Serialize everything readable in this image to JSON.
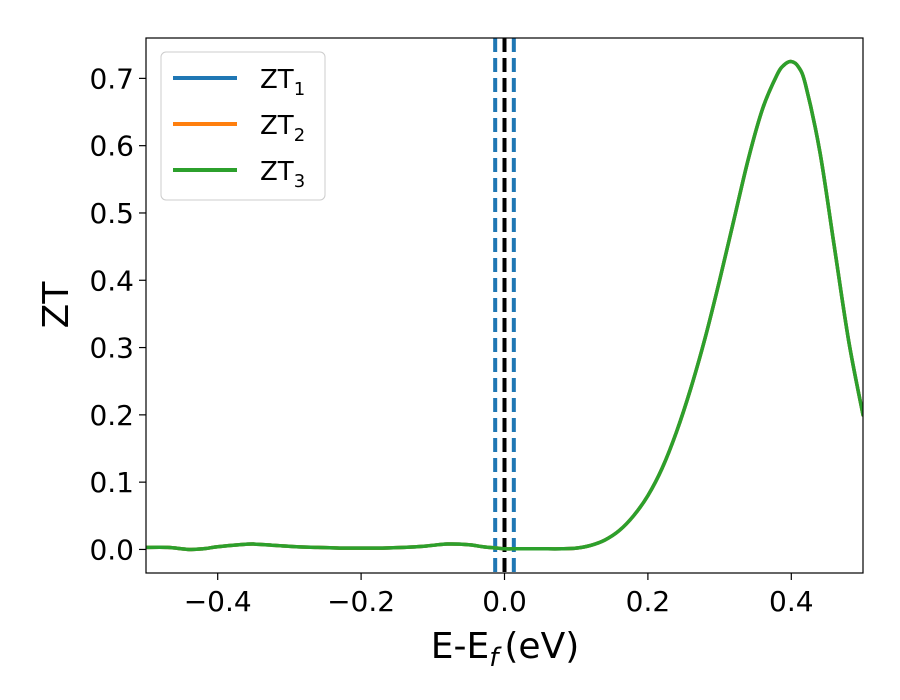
{
  "chart_data": {
    "type": "line",
    "xlabel": "E-E",
    "xlabel_sub": "f",
    "xlabel_unit": "(eV)",
    "ylabel": "ZT",
    "xlim": [
      -0.5,
      0.5
    ],
    "ylim": [
      -0.035,
      0.76
    ],
    "x_ticks": [
      -0.4,
      -0.2,
      0.0,
      0.2,
      0.4
    ],
    "x_tick_labels": [
      "−0.4",
      "−0.2",
      "0.0",
      "0.2",
      "0.4"
    ],
    "y_ticks": [
      0.0,
      0.1,
      0.2,
      0.3,
      0.4,
      0.5,
      0.6,
      0.7
    ],
    "y_tick_labels": [
      "0.0",
      "0.1",
      "0.2",
      "0.3",
      "0.4",
      "0.5",
      "0.6",
      "0.7"
    ],
    "grid": false,
    "legend_position": "top-left",
    "vertical_lines": [
      {
        "x": -0.013,
        "style": "dashed",
        "color": "#1f77b4"
      },
      {
        "x": 0.013,
        "style": "dashed",
        "color": "#1f77b4"
      },
      {
        "x": 0.0,
        "style": "dashed",
        "color": "#000000"
      }
    ],
    "x": [
      -0.5,
      -0.47,
      -0.44,
      -0.42,
      -0.4,
      -0.37,
      -0.35,
      -0.32,
      -0.29,
      -0.26,
      -0.23,
      -0.2,
      -0.17,
      -0.14,
      -0.11,
      -0.08,
      -0.05,
      -0.03,
      -0.01,
      0.0,
      0.02,
      0.05,
      0.08,
      0.1,
      0.12,
      0.14,
      0.16,
      0.18,
      0.2,
      0.22,
      0.24,
      0.26,
      0.28,
      0.3,
      0.32,
      0.34,
      0.36,
      0.38,
      0.39,
      0.4,
      0.41,
      0.42,
      0.44,
      0.46,
      0.48,
      0.5
    ],
    "series": [
      {
        "name": "ZT",
        "sub": "1",
        "color": "#1f77b4",
        "values": [
          0.003,
          0.003,
          0.0,
          0.001,
          0.004,
          0.007,
          0.008,
          0.006,
          0.004,
          0.003,
          0.002,
          0.002,
          0.002,
          0.003,
          0.005,
          0.008,
          0.007,
          0.004,
          0.002,
          0.001,
          0.001,
          0.001,
          0.001,
          0.002,
          0.006,
          0.014,
          0.028,
          0.05,
          0.08,
          0.121,
          0.175,
          0.24,
          0.315,
          0.4,
          0.49,
          0.58,
          0.655,
          0.705,
          0.72,
          0.725,
          0.717,
          0.69,
          0.59,
          0.45,
          0.31,
          0.2
        ]
      },
      {
        "name": "ZT",
        "sub": "2",
        "color": "#ff7f0e",
        "values": [
          0.003,
          0.003,
          0.0,
          0.001,
          0.004,
          0.007,
          0.008,
          0.006,
          0.004,
          0.003,
          0.002,
          0.002,
          0.002,
          0.003,
          0.005,
          0.008,
          0.007,
          0.004,
          0.002,
          0.001,
          0.001,
          0.001,
          0.001,
          0.002,
          0.006,
          0.014,
          0.028,
          0.05,
          0.08,
          0.121,
          0.175,
          0.24,
          0.315,
          0.4,
          0.49,
          0.58,
          0.655,
          0.705,
          0.72,
          0.725,
          0.717,
          0.69,
          0.59,
          0.45,
          0.31,
          0.2
        ]
      },
      {
        "name": "ZT",
        "sub": "3",
        "color": "#2ca02c",
        "values": [
          0.003,
          0.003,
          0.0,
          0.001,
          0.004,
          0.007,
          0.008,
          0.006,
          0.004,
          0.003,
          0.002,
          0.002,
          0.002,
          0.003,
          0.005,
          0.008,
          0.007,
          0.004,
          0.002,
          0.001,
          0.001,
          0.001,
          0.001,
          0.002,
          0.006,
          0.014,
          0.028,
          0.05,
          0.08,
          0.121,
          0.175,
          0.24,
          0.315,
          0.4,
          0.49,
          0.58,
          0.655,
          0.705,
          0.72,
          0.725,
          0.717,
          0.69,
          0.59,
          0.45,
          0.31,
          0.2
        ]
      }
    ]
  }
}
